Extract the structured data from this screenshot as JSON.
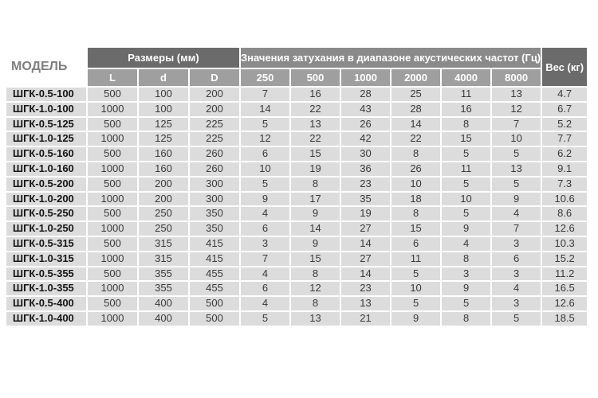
{
  "table": {
    "model_header": "МОДЕЛЬ",
    "dimensions_header": "Размеры (мм)",
    "attenuation_header": "Значения затухания в диапазоне акустических частот (Гц)",
    "weight_header": "Вес (кг)",
    "dimension_columns": [
      "L",
      "d",
      "D"
    ],
    "frequency_columns": [
      "250",
      "500",
      "1000",
      "2000",
      "4000",
      "8000"
    ],
    "rows": [
      {
        "model": "ШГК-0.5-100",
        "L": "500",
        "d": "100",
        "D": "200",
        "att": [
          "7",
          "16",
          "28",
          "25",
          "11",
          "13"
        ],
        "weight": "4.7"
      },
      {
        "model": "ШГК-1.0-100",
        "L": "1000",
        "d": "100",
        "D": "200",
        "att": [
          "14",
          "22",
          "43",
          "28",
          "16",
          "12"
        ],
        "weight": "6.7"
      },
      {
        "model": "ШГК-0.5-125",
        "L": "500",
        "d": "125",
        "D": "225",
        "att": [
          "5",
          "13",
          "26",
          "14",
          "8",
          "7"
        ],
        "weight": "5.2"
      },
      {
        "model": "ШГК-1.0-125",
        "L": "1000",
        "d": "125",
        "D": "225",
        "att": [
          "12",
          "22",
          "42",
          "22",
          "15",
          "10"
        ],
        "weight": "7.7"
      },
      {
        "model": "ШГК-0.5-160",
        "L": "500",
        "d": "160",
        "D": "260",
        "att": [
          "6",
          "15",
          "30",
          "8",
          "5",
          "5"
        ],
        "weight": "6.2"
      },
      {
        "model": "ШГК-1.0-160",
        "L": "1000",
        "d": "160",
        "D": "260",
        "att": [
          "10",
          "19",
          "36",
          "26",
          "11",
          "13"
        ],
        "weight": "9.1"
      },
      {
        "model": "ШГК-0.5-200",
        "L": "500",
        "d": "200",
        "D": "300",
        "att": [
          "5",
          "8",
          "23",
          "10",
          "5",
          "5"
        ],
        "weight": "7.3"
      },
      {
        "model": "ШГК-1.0-200",
        "L": "1000",
        "d": "200",
        "D": "300",
        "att": [
          "9",
          "17",
          "35",
          "18",
          "10",
          "9"
        ],
        "weight": "10.6"
      },
      {
        "model": "ШГК-0.5-250",
        "L": "500",
        "d": "250",
        "D": "350",
        "att": [
          "4",
          "9",
          "19",
          "8",
          "5",
          "4"
        ],
        "weight": "8.6"
      },
      {
        "model": "ШГК-1.0-250",
        "L": "1000",
        "d": "250",
        "D": "350",
        "att": [
          "6",
          "14",
          "27",
          "15",
          "9",
          "7"
        ],
        "weight": "12.6"
      },
      {
        "model": "ШГК-0.5-315",
        "L": "500",
        "d": "315",
        "D": "415",
        "att": [
          "3",
          "9",
          "14",
          "6",
          "4",
          "3"
        ],
        "weight": "10.3"
      },
      {
        "model": "ШГК-1.0-315",
        "L": "1000",
        "d": "315",
        "D": "415",
        "att": [
          "7",
          "15",
          "27",
          "11",
          "8",
          "6"
        ],
        "weight": "15.2"
      },
      {
        "model": "ШГК-0.5-355",
        "L": "500",
        "d": "355",
        "D": "455",
        "att": [
          "4",
          "8",
          "14",
          "5",
          "3",
          "3"
        ],
        "weight": "11.2"
      },
      {
        "model": "ШГК-1.0-355",
        "L": "1000",
        "d": "355",
        "D": "455",
        "att": [
          "6",
          "12",
          "23",
          "10",
          "9",
          "4"
        ],
        "weight": "16.5"
      },
      {
        "model": "ШГК-0.5-400",
        "L": "500",
        "d": "400",
        "D": "500",
        "att": [
          "4",
          "8",
          "13",
          "5",
          "5",
          "3"
        ],
        "weight": "12.6"
      },
      {
        "model": "ШГК-1.0-400",
        "L": "1000",
        "d": "400",
        "D": "500",
        "att": [
          "5",
          "13",
          "21",
          "9",
          "8",
          "5"
        ],
        "weight": "18.5"
      }
    ]
  },
  "colors": {
    "dark_header": "#6b6b6b",
    "mid_header": "#8a8a8a",
    "sub_header": "#9f9f9f",
    "cell_bg": "#dcdcdc",
    "cell_text": "#3a3a3a",
    "model_text": "#151515",
    "model_header_text": "#7f7f7f"
  }
}
